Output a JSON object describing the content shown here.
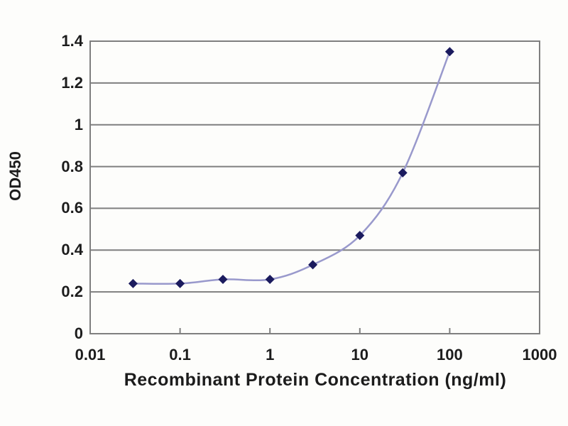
{
  "chart_data": {
    "type": "line",
    "title": "",
    "xlabel": "Recombinant Protein Concentration (ng/ml)",
    "ylabel": "OD450",
    "x_scale": "log",
    "xlim": [
      0.01,
      1000
    ],
    "ylim": [
      0,
      1.4
    ],
    "x_ticks": [
      "0.01",
      "0.1",
      "1",
      "10",
      "100",
      "1000"
    ],
    "y_ticks": [
      "0",
      "0.2",
      "0.4",
      "0.6",
      "0.8",
      "1",
      "1.2",
      "1.4"
    ],
    "grid": "horizontal",
    "legend": "none",
    "series": [
      {
        "name": "OD450",
        "marker": "diamond",
        "x": [
          0.03,
          0.1,
          0.3,
          1,
          3,
          10,
          30,
          100
        ],
        "y": [
          0.24,
          0.24,
          0.26,
          0.26,
          0.33,
          0.47,
          0.77,
          1.35
        ]
      }
    ],
    "colors": {
      "line": "#9999cc",
      "marker": "#1b1b5e",
      "grid": "#7f7f7f",
      "text": "#1c1c1c",
      "background": "#fdfdfb"
    }
  }
}
